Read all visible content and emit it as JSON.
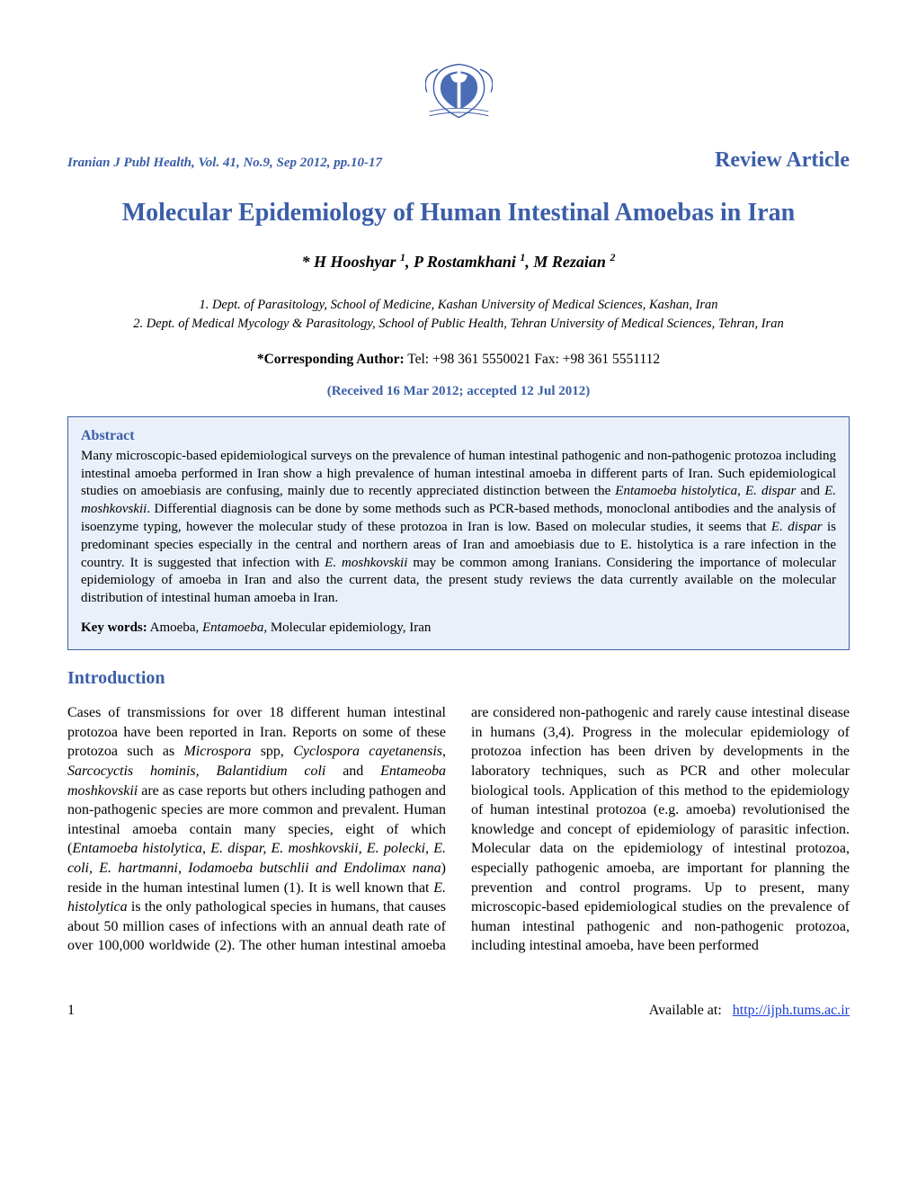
{
  "colors": {
    "accent": "#3b5ea8",
    "abstract_bg": "#eaf0fa",
    "abstract_border": "#3b5ea8",
    "link": "#1a3fd6",
    "text": "#000000",
    "background": "#ffffff"
  },
  "journal_info": "Iranian J Publ Health, Vol. 41, No.9, Sep 2012, pp.10-17",
  "article_type": "Review Article",
  "title": "Molecular Epidemiology of Human Intestinal Amoebas in Iran",
  "authors_html": "* H Hooshyar <sup>1</sup>, P Rostamkhani <sup>1</sup>, M Rezaian <sup>2</sup>",
  "affiliations": [
    "1.    Dept. of Parasitology, School of Medicine, Kashan University of Medical Sciences, Kashan, Iran",
    "2.    Dept. of Medical Mycology & Parasitology, School of Public Health, Tehran University of Medical Sciences, Tehran, Iran"
  ],
  "corresponding": {
    "label": "*Corresponding Author:",
    "text": " Tel: +98 361 5550021   Fax: +98 361 5551112"
  },
  "dates": "(Received 16 Mar 2012; accepted 12 Jul 2012)",
  "abstract": {
    "heading": "Abstract",
    "body_html": "Many microscopic-based epidemiological surveys on the prevalence of human intestinal pathogenic and non-pathogenic protozoa including intestinal amoeba performed in Iran show a high prevalence of human intestinal amoeba in different parts of Iran. Such epidemiological studies on amoebiasis are confusing, mainly due to recently appreciated distinction between the <em>Entamoeba histolytica</em>, <em>E. dispar</em> and <em>E. moshkovskii</em>. Differential diagnosis can be done by some methods such as PCR-based methods, monoclonal antibodies and the analysis of isoenzyme typing, however the molecular study of these protozoa in Iran is low. Based on molecular studies, it seems that <em>E. dispar</em> is predominant species especially in the central and northern areas of Iran and amoebiasis due to E. histolytica is a rare infection in the country. It is suggested that infection with <em>E. moshkovskii</em> may be common among Iranians. Considering the importance of molecular epidemiology of amoeba in Iran and also the current data, the present study reviews the data currently available on the molecular distribution of intestinal human amoeba in Iran.",
    "keywords_label": "Key words:",
    "keywords_html": " Amoeba, <em>Entamoeba</em>, Molecular epidemiology, Iran"
  },
  "introduction": {
    "heading": "Introduction",
    "body_html": "Cases of transmissions for over 18 different human intestinal protozoa have been reported in Iran. Reports on some of these protozoa such as <em>Microspora</em> spp, <em>Cyclospora cayetanensis</em>, <em>Sarcocyctis hominis, Balantidium coli</em> and <em>Entameoba moshkovskii</em> are as case reports but others including pathogen and non-pathogenic species are more common and prevalent. Human intestinal amoeba contain many species, eight of which (<em>Entamoeba histolytica, E. dispar, E. moshkovskii, E. polecki, E. coli, E. hartmanni, Iodamoeba butschlii and Endolimax nana</em>) reside in the human intestinal lumen (1). It is well known that <em>E. histolytica</em> is the only pathological species in humans, that causes about 50 million cases of infections with an annual death rate of over 100,000 worldwide (2). The other human intestinal amoeba are considered non-pathogenic and rarely cause intestinal disease in humans (3,4). Progress in the molecular epidemiology of protozoa infection has been driven by developments in the laboratory techniques, such as PCR and other molecular biological tools. Application of this method to the epidemiology of human intestinal protozoa (e.g. amoeba) revolutionised the knowledge and concept of epidemiology of parasitic infection. Molecular data on the epidemiology of intestinal protozoa, especially pathogenic amoeba, are important for planning the prevention and control programs. Up to present, many microscopic-based epidemiological studies on the prevalence of human intestinal pathogenic and non-pathogenic protozoa, including intestinal amoeba, have been performed"
  },
  "footer": {
    "page_number": "1",
    "available_label": "Available at:",
    "url": "http://ijph.tums.ac.ir"
  }
}
